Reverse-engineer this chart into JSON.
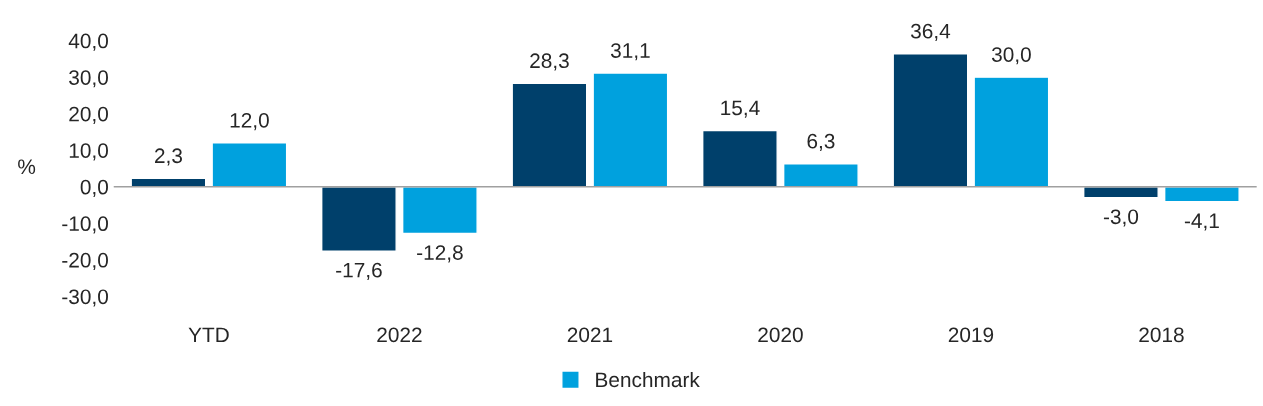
{
  "chart_data": {
    "type": "bar",
    "ylabel": "%",
    "categories": [
      "YTD",
      "2022",
      "2021",
      "2020",
      "2019",
      "2018"
    ],
    "series": [
      {
        "color": "#00406b",
        "values": [
          2.3,
          -17.6,
          28.3,
          15.4,
          36.4,
          -3.0
        ],
        "value_labels": [
          "2,3",
          "-17,6",
          "28,3",
          "15,4",
          "36,4",
          "-3,0"
        ]
      },
      {
        "name": "Benchmark",
        "color": "#00a1de",
        "values": [
          12.0,
          -12.8,
          31.1,
          6.3,
          30.0,
          -4.1
        ],
        "value_labels": [
          "12,0",
          "-12,8",
          "31,1",
          "6,3",
          "30,0",
          "-4,1"
        ]
      }
    ],
    "ylim": [
      -30,
      40
    ],
    "yticks": [
      {
        "value": -30,
        "label": "-30,0"
      },
      {
        "value": -20,
        "label": "-20,0"
      },
      {
        "value": -10,
        "label": "-10,0"
      },
      {
        "value": 0,
        "label": "0,0"
      },
      {
        "value": 10,
        "label": "10,0"
      },
      {
        "value": 20,
        "label": "20,0"
      },
      {
        "value": 30,
        "label": "30,0"
      },
      {
        "value": 40,
        "label": "40,0"
      }
    ],
    "ref_lines": [
      {
        "axis": "y",
        "value": 0,
        "color": "#a0a0a0"
      }
    ],
    "grid": false,
    "legend": "bottom"
  }
}
